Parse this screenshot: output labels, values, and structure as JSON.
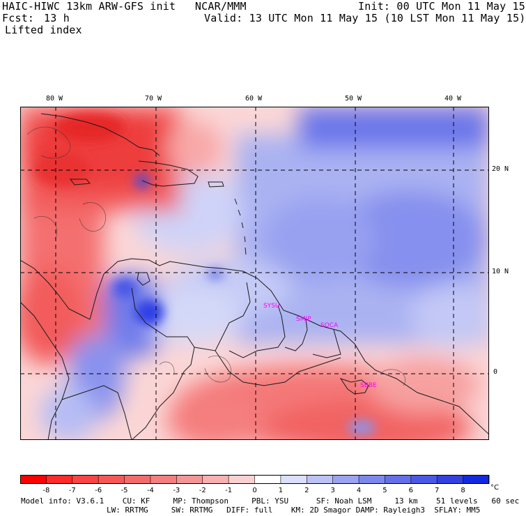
{
  "header": {
    "title_left": "HAIC-HIWC 13km ARW-GFS init   NCAR/MMM",
    "init": "Init: 00 UTC Mon 11 May 15",
    "fcst_label": "Fcst:",
    "fcst_value": "13 h",
    "valid": "Valid: 13 UTC Mon 11 May 15 (10 LST Mon 11 May 15)",
    "field": "Lifted index"
  },
  "map": {
    "lon_labels": [
      "80 W",
      "70 W",
      "60 W",
      "50 W",
      "40 W"
    ],
    "lat_labels": [
      "20 N",
      "10 N",
      "0"
    ],
    "stations": [
      "SYSU",
      "SMJP",
      "SOCA",
      "SBBE"
    ],
    "colors": {
      "unstable_strong": "#ff2020",
      "unstable": "#f46e6e",
      "neutral": "#ffffff",
      "stable": "#9aa4f2",
      "stable_strong": "#2a3ee8",
      "station_text": "#ff00ff"
    }
  },
  "colorbar": {
    "ticks": [
      "-8",
      "-7",
      "-6",
      "-5",
      "-4",
      "-3",
      "-2",
      "-1",
      "0",
      "1",
      "2",
      "3",
      "4",
      "5",
      "6",
      "7",
      "8"
    ],
    "unit": "°C",
    "colors": [
      "#ff0000",
      "#ff2a2a",
      "#fb4444",
      "#f65858",
      "#f36c6c",
      "#f47f7f",
      "#f59595",
      "#f8b0b0",
      "#fbd0d0",
      "#ffffff",
      "#dcdffb",
      "#bcc2f6",
      "#9ca3f1",
      "#7e88ec",
      "#6470ea",
      "#4a58e6",
      "#3241e2",
      "#1428e0"
    ]
  },
  "footer": {
    "line1": "Model info: V3.6.1    CU: KF     MP: Thompson     PBL: YSU      SF: Noah LSM     13 km    51 levels   60 sec",
    "line2": "LW: RRTMG     SW: RRTMG   DIFF: full    KM: 2D Smagor DAMP: Rayleigh3  SFLAY: MM5"
  }
}
